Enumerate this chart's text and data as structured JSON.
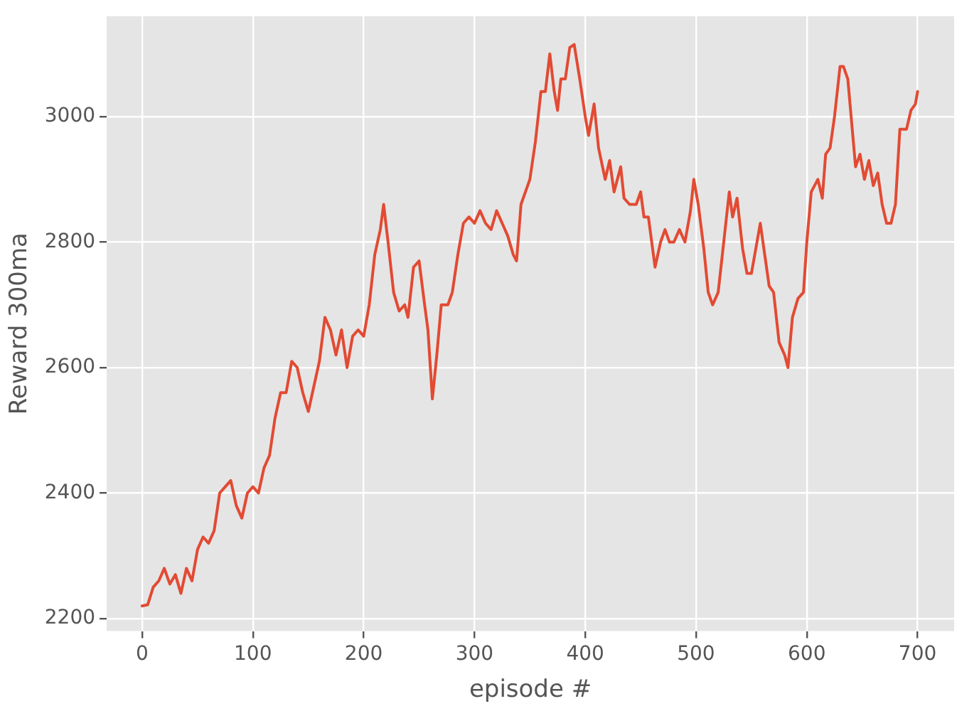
{
  "chart_data": {
    "type": "line",
    "xlabel": "episode #",
    "ylabel": "Reward 300ma",
    "grid": true,
    "legend": false,
    "marker": "none",
    "line_style": "solid",
    "xlim": [
      -32,
      733
    ],
    "xticks": [
      0,
      100,
      200,
      300,
      400,
      500,
      600,
      700
    ],
    "ylim": [
      2180,
      3160
    ],
    "yticks": [
      2200,
      2400,
      2600,
      2800,
      3000
    ],
    "x": [
      0,
      5,
      10,
      15,
      20,
      25,
      30,
      35,
      40,
      45,
      50,
      55,
      60,
      65,
      70,
      75,
      80,
      85,
      90,
      95,
      100,
      105,
      110,
      115,
      120,
      125,
      130,
      135,
      140,
      145,
      150,
      155,
      160,
      165,
      170,
      175,
      180,
      185,
      190,
      195,
      200,
      205,
      210,
      215,
      218,
      222,
      227,
      232,
      237,
      240,
      245,
      250,
      255,
      258,
      262,
      266,
      270,
      276,
      280,
      285,
      290,
      295,
      300,
      305,
      310,
      315,
      320,
      325,
      330,
      335,
      338,
      342,
      346,
      350,
      355,
      360,
      364,
      368,
      372,
      375,
      378,
      382,
      386,
      390,
      395,
      400,
      403,
      408,
      412,
      418,
      422,
      426,
      432,
      435,
      440,
      446,
      450,
      453,
      457,
      460,
      463,
      468,
      472,
      476,
      480,
      485,
      490,
      495,
      498,
      502,
      507,
      511,
      515,
      520,
      525,
      530,
      533,
      537,
      542,
      546,
      550,
      555,
      558,
      562,
      566,
      570,
      575,
      580,
      583,
      587,
      592,
      597,
      600,
      604,
      610,
      614,
      617,
      621,
      625,
      630,
      633,
      637,
      640,
      644,
      648,
      652,
      656,
      660,
      664,
      668,
      672,
      676,
      680,
      684,
      690,
      694,
      698,
      700
    ],
    "series": [
      {
        "color": "#e24a33",
        "values": [
          2220,
          2222,
          2250,
          2260,
          2280,
          2255,
          2270,
          2240,
          2280,
          2260,
          2310,
          2330,
          2320,
          2340,
          2400,
          2410,
          2420,
          2380,
          2360,
          2400,
          2410,
          2400,
          2440,
          2460,
          2520,
          2560,
          2560,
          2610,
          2600,
          2560,
          2530,
          2570,
          2610,
          2680,
          2660,
          2620,
          2660,
          2600,
          2650,
          2660,
          2650,
          2700,
          2780,
          2820,
          2860,
          2800,
          2720,
          2690,
          2700,
          2680,
          2760,
          2770,
          2700,
          2660,
          2550,
          2620,
          2700,
          2700,
          2720,
          2780,
          2830,
          2840,
          2830,
          2850,
          2830,
          2820,
          2850,
          2830,
          2810,
          2780,
          2770,
          2860,
          2880,
          2900,
          2960,
          3040,
          3040,
          3100,
          3040,
          3010,
          3060,
          3060,
          3110,
          3115,
          3060,
          3000,
          2970,
          3020,
          2950,
          2900,
          2930,
          2880,
          2920,
          2870,
          2860,
          2860,
          2880,
          2840,
          2840,
          2800,
          2760,
          2800,
          2820,
          2800,
          2800,
          2820,
          2800,
          2850,
          2900,
          2860,
          2790,
          2720,
          2700,
          2720,
          2800,
          2880,
          2840,
          2870,
          2790,
          2750,
          2750,
          2800,
          2830,
          2780,
          2730,
          2720,
          2640,
          2620,
          2600,
          2680,
          2710,
          2720,
          2800,
          2880,
          2900,
          2870,
          2940,
          2950,
          3000,
          3080,
          3080,
          3060,
          3000,
          2920,
          2940,
          2900,
          2930,
          2890,
          2910,
          2860,
          2830,
          2830,
          2860,
          2980,
          2980,
          3010,
          3020,
          3040
        ]
      }
    ]
  }
}
